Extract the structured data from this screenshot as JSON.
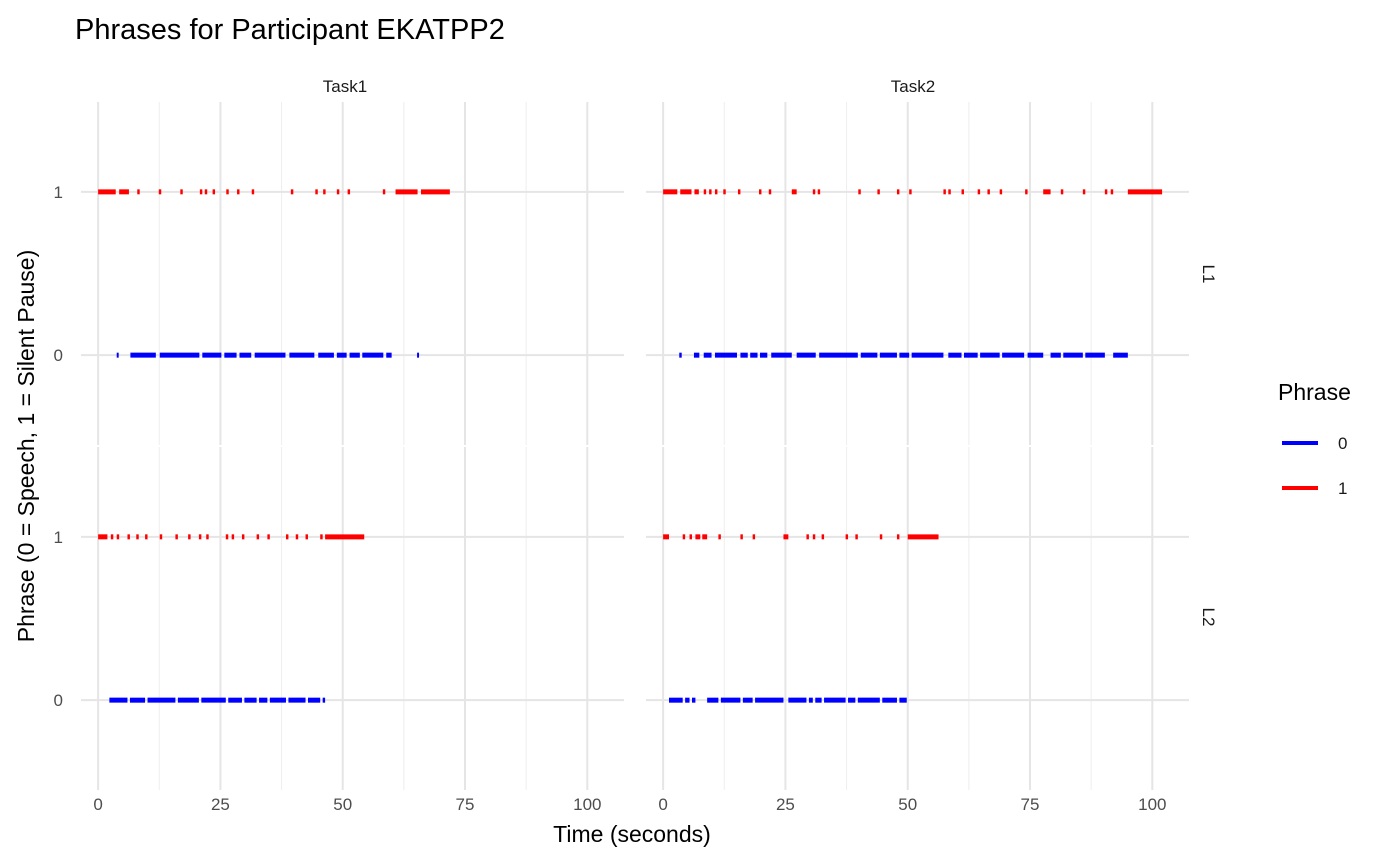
{
  "chart_data": {
    "type": "line",
    "title": "Phrases for Participant EKATPP2",
    "xlabel": "Time (seconds)",
    "ylabel": "Phrase (0 = Speech, 1 = Silent Pause)",
    "xlim": [
      -3.5,
      107.5
    ],
    "ylim": [
      -0.55,
      1.55
    ],
    "x_ticks": [
      0,
      25,
      50,
      75,
      100
    ],
    "x_tick_labels": [
      "0",
      "25",
      "50",
      "75",
      "100"
    ],
    "y_ticks": [
      0,
      1
    ],
    "y_tick_labels": [
      "0",
      "1"
    ],
    "grid": true,
    "legend": {
      "title": "Phrase",
      "placement": "right",
      "entries": [
        {
          "label": "0",
          "color": "#0000ff"
        },
        {
          "label": "1",
          "color": "#ff0000"
        }
      ]
    },
    "facets": {
      "columns": [
        "Task1",
        "Task2"
      ],
      "rows": [
        "L1",
        "L2"
      ]
    },
    "panels": [
      {
        "col": "Task1",
        "row": "L1",
        "series": [
          {
            "phrase": "1",
            "color": "#ff0000",
            "y": 1,
            "segments": [
              [
                0,
                3.6
              ],
              [
                4.3,
                6.3
              ],
              [
                8,
                8.5
              ],
              [
                12.4,
                12.9
              ],
              [
                16.8,
                17.3
              ],
              [
                20.8,
                21.3
              ],
              [
                21.8,
                22.3
              ],
              [
                23.4,
                23.9
              ],
              [
                26.2,
                26.7
              ],
              [
                28.4,
                28.9
              ],
              [
                31.4,
                31.9
              ],
              [
                39.4,
                39.9
              ],
              [
                44.4,
                44.9
              ],
              [
                46,
                46.5
              ],
              [
                48.8,
                49.3
              ],
              [
                51,
                51.5
              ],
              [
                58.2,
                58.7
              ],
              [
                60.8,
                65.3
              ],
              [
                66,
                71.9
              ]
            ]
          },
          {
            "phrase": "0",
            "color": "#0000ff",
            "y": 0,
            "segments": [
              [
                3.8,
                4.2
              ],
              [
                6.6,
                11.8
              ],
              [
                12.6,
                20.7
              ],
              [
                21.3,
                25.2
              ],
              [
                25.8,
                28.3
              ],
              [
                28.9,
                31.3
              ],
              [
                32,
                38.3
              ],
              [
                39.1,
                44.2
              ],
              [
                45,
                48.2
              ],
              [
                48.8,
                50.8
              ],
              [
                51.4,
                53.5
              ],
              [
                54,
                58.3
              ],
              [
                58.9,
                60
              ],
              [
                65.2,
                65.6
              ]
            ]
          }
        ]
      },
      {
        "col": "Task2",
        "row": "L1",
        "series": [
          {
            "phrase": "1",
            "color": "#ff0000",
            "y": 1,
            "segments": [
              [
                0,
                2.9
              ],
              [
                3.5,
                5.8
              ],
              [
                6.4,
                7.3
              ],
              [
                8.3,
                8.8
              ],
              [
                9.4,
                9.9
              ],
              [
                10.6,
                11.1
              ],
              [
                12.3,
                12.8
              ],
              [
                15.3,
                15.8
              ],
              [
                19.6,
                20.1
              ],
              [
                21.6,
                22.1
              ],
              [
                26.3,
                27.3
              ],
              [
                30.6,
                31.1
              ],
              [
                31.6,
                32.1
              ],
              [
                39.9,
                40.4
              ],
              [
                43.8,
                44.3
              ],
              [
                47.8,
                48.3
              ],
              [
                50.3,
                50.8
              ],
              [
                57.3,
                57.8
              ],
              [
                58.3,
                58.8
              ],
              [
                61,
                61.5
              ],
              [
                64.3,
                64.8
              ],
              [
                66.3,
                66.8
              ],
              [
                68.8,
                69.3
              ],
              [
                74,
                74.5
              ],
              [
                77.7,
                79.2
              ],
              [
                81.3,
                81.8
              ],
              [
                85.8,
                86.3
              ],
              [
                90.3,
                90.8
              ],
              [
                91.5,
                92
              ],
              [
                95,
                102
              ]
            ]
          },
          {
            "phrase": "0",
            "color": "#0000ff",
            "y": 0,
            "segments": [
              [
                3.3,
                3.8
              ],
              [
                6.3,
                7.4
              ],
              [
                8.3,
                9.9
              ],
              [
                10.6,
                15.1
              ],
              [
                15.8,
                17.3
              ],
              [
                17.8,
                19.3
              ],
              [
                19.8,
                21.3
              ],
              [
                22.1,
                26.3
              ],
              [
                27.3,
                31.2
              ],
              [
                31.9,
                39.8
              ],
              [
                40.4,
                43.8
              ],
              [
                44.3,
                47.8
              ],
              [
                48.3,
                50.3
              ],
              [
                50.8,
                57.3
              ],
              [
                58.3,
                61
              ],
              [
                61.5,
                64.3
              ],
              [
                64.8,
                68.8
              ],
              [
                69.3,
                73.8
              ],
              [
                74.5,
                77.7
              ],
              [
                79.2,
                81.3
              ],
              [
                81.8,
                85.8
              ],
              [
                86.3,
                90.3
              ],
              [
                92,
                95
              ]
            ]
          }
        ]
      },
      {
        "col": "Task1",
        "row": "L2",
        "series": [
          {
            "phrase": "1",
            "color": "#ff0000",
            "y": 1,
            "segments": [
              [
                0,
                1.9
              ],
              [
                2.6,
                3.1
              ],
              [
                3.8,
                4.3
              ],
              [
                6,
                6.5
              ],
              [
                7.8,
                8.3
              ],
              [
                9.6,
                10.1
              ],
              [
                12.6,
                13.1
              ],
              [
                15.8,
                16.3
              ],
              [
                18.4,
                18.9
              ],
              [
                20.6,
                21.1
              ],
              [
                22.1,
                22.6
              ],
              [
                26.1,
                26.6
              ],
              [
                27.3,
                27.8
              ],
              [
                29.4,
                29.9
              ],
              [
                32.4,
                32.9
              ],
              [
                34.6,
                35.1
              ],
              [
                38.4,
                38.9
              ],
              [
                40.4,
                40.9
              ],
              [
                42.4,
                42.9
              ],
              [
                45.4,
                45.9
              ],
              [
                46.4,
                54.4
              ]
            ]
          },
          {
            "phrase": "0",
            "color": "#0000ff",
            "y": 0,
            "segments": [
              [
                2.3,
                6
              ],
              [
                6.5,
                9.6
              ],
              [
                10.1,
                15.8
              ],
              [
                16.3,
                20.6
              ],
              [
                21.1,
                26.1
              ],
              [
                26.6,
                29.4
              ],
              [
                29.9,
                32.4
              ],
              [
                32.9,
                34.6
              ],
              [
                35.1,
                38.4
              ],
              [
                38.9,
                42.4
              ],
              [
                42.9,
                45.4
              ],
              [
                45.9,
                46.4
              ]
            ]
          }
        ]
      },
      {
        "col": "Task2",
        "row": "L2",
        "series": [
          {
            "phrase": "1",
            "color": "#ff0000",
            "y": 1,
            "segments": [
              [
                0,
                1.2
              ],
              [
                4,
                4.5
              ],
              [
                5.4,
                5.9
              ],
              [
                6.6,
                7.6
              ],
              [
                8,
                9
              ],
              [
                11.3,
                11.8
              ],
              [
                15.8,
                16.3
              ],
              [
                18.3,
                18.8
              ],
              [
                24.6,
                25.6
              ],
              [
                29.3,
                29.8
              ],
              [
                30.6,
                31.1
              ],
              [
                32.4,
                32.9
              ],
              [
                37.3,
                37.8
              ],
              [
                39.3,
                39.8
              ],
              [
                44.3,
                44.8
              ],
              [
                47.8,
                48.3
              ],
              [
                50,
                56.3
              ]
            ]
          },
          {
            "phrase": "0",
            "color": "#0000ff",
            "y": 0,
            "segments": [
              [
                1.2,
                4
              ],
              [
                4.5,
                5.4
              ],
              [
                5.9,
                6.6
              ],
              [
                9,
                11.3
              ],
              [
                11.8,
                15.8
              ],
              [
                16.3,
                18.3
              ],
              [
                18.8,
                24.6
              ],
              [
                25.6,
                29.3
              ],
              [
                29.8,
                30.6
              ],
              [
                31.1,
                32.4
              ],
              [
                32.9,
                37.3
              ],
              [
                37.8,
                39.3
              ],
              [
                39.8,
                44.3
              ],
              [
                44.8,
                47.8
              ],
              [
                48.3,
                49.8
              ]
            ]
          }
        ]
      }
    ]
  }
}
